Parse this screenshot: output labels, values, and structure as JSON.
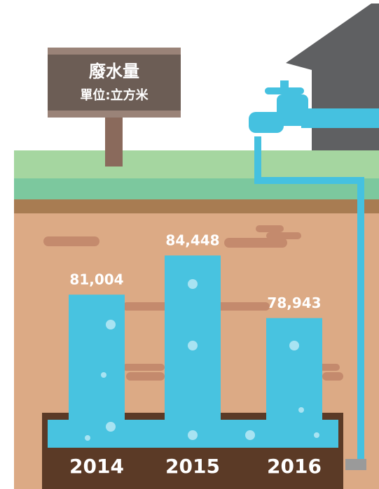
{
  "chart_data": {
    "type": "bar",
    "title": "廢水量",
    "subtitle": "單位:立方米",
    "categories": [
      "2014",
      "2015",
      "2016"
    ],
    "values": [
      81004,
      84448,
      78943
    ],
    "value_labels": [
      "81,004",
      "84,448",
      "78,943"
    ],
    "color": "#48c3e0",
    "ylim": [
      70000,
      86000
    ]
  }
}
